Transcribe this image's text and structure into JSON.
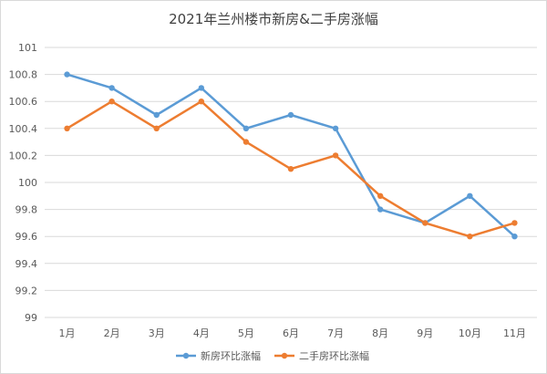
{
  "chart_data": {
    "type": "line",
    "title": "2021年兰州楼市新房&二手房涨幅",
    "categories": [
      "1月",
      "2月",
      "3月",
      "4月",
      "5月",
      "6月",
      "7月",
      "8月",
      "9月",
      "10月",
      "11月"
    ],
    "series": [
      {
        "name": "新房环比涨幅",
        "color": "#5b9bd5",
        "values": [
          100.8,
          100.7,
          100.5,
          100.7,
          100.4,
          100.5,
          100.4,
          99.8,
          99.7,
          99.9,
          99.6
        ]
      },
      {
        "name": "二手房环比涨幅",
        "color": "#ed7d31",
        "values": [
          100.4,
          100.6,
          100.4,
          100.6,
          100.3,
          100.1,
          100.2,
          99.9,
          99.7,
          99.6,
          99.7
        ]
      }
    ],
    "ylim": [
      99,
      101
    ],
    "yticks": [
      "99",
      "99.2",
      "99.4",
      "99.6",
      "99.8",
      "100",
      "100.2",
      "100.4",
      "100.6",
      "100.8",
      "101"
    ],
    "grid": true,
    "legend": "bottom"
  }
}
